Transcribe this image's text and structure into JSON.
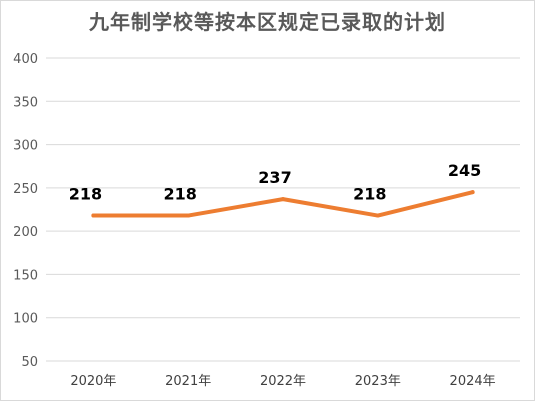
{
  "chart_data": {
    "type": "line",
    "title": "九年制学校等按本区规定已录取的计划",
    "categories": [
      "2020年",
      "2021年",
      "2022年",
      "2023年",
      "2024年"
    ],
    "series": [
      {
        "values": [
          218,
          218,
          237,
          218,
          245
        ]
      }
    ],
    "data_labels": [
      "218",
      "218",
      "237",
      "218",
      "245"
    ],
    "ylim": [
      50,
      400
    ],
    "yticks": [
      50,
      100,
      150,
      200,
      250,
      300,
      350,
      400
    ],
    "grid": true,
    "line_color": "#ED7D31",
    "grid_color": "#d9d9d9"
  }
}
